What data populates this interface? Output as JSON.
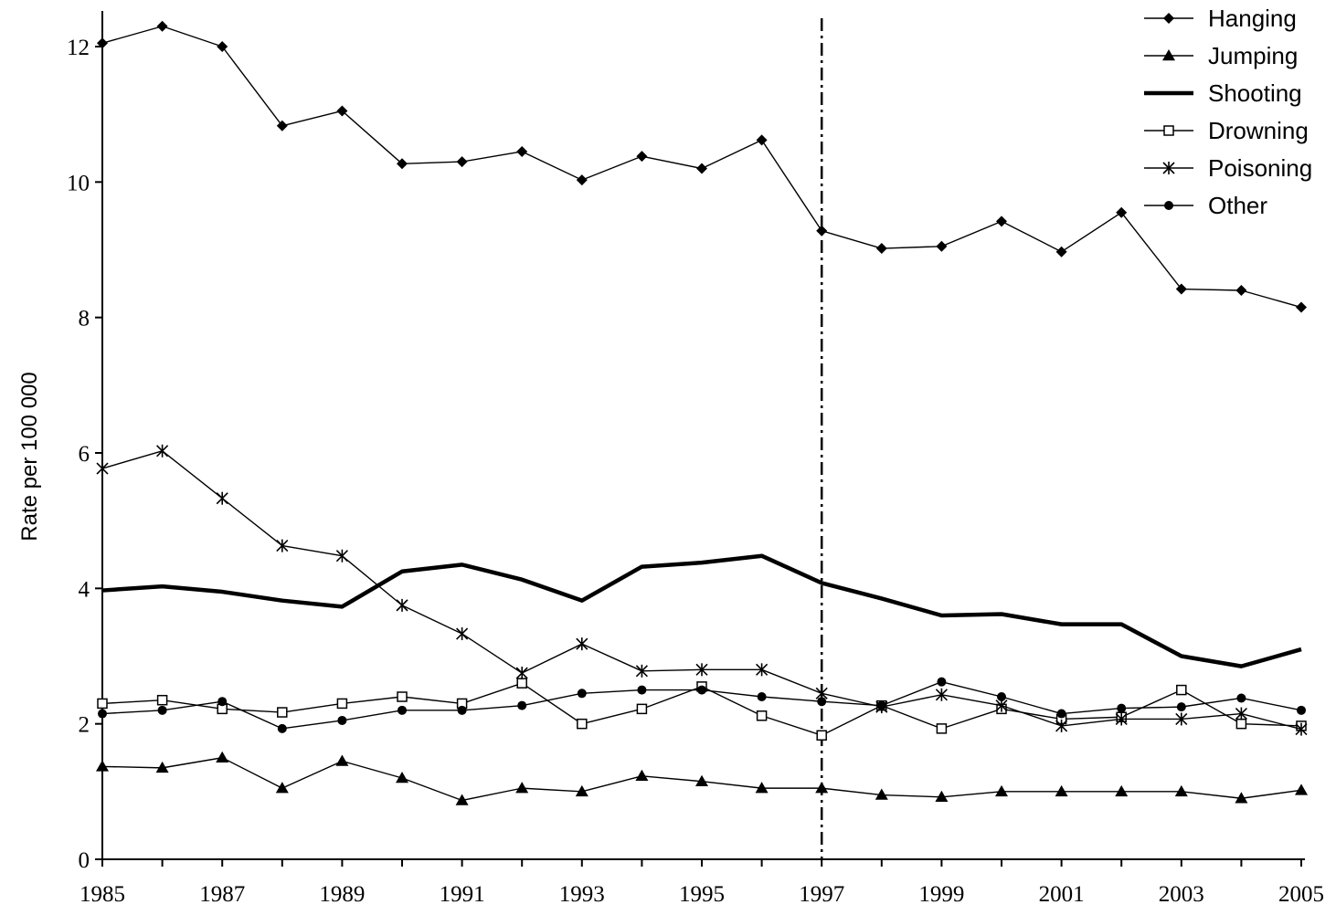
{
  "chart_data": {
    "type": "line",
    "title": "",
    "xlabel": "",
    "ylabel": "Rate per 100 000",
    "xlim": [
      1985,
      2005
    ],
    "ylim": [
      0,
      12.5
    ],
    "x": [
      1985,
      1986,
      1987,
      1988,
      1989,
      1990,
      1991,
      1992,
      1993,
      1994,
      1995,
      1996,
      1997,
      1998,
      1999,
      2000,
      2001,
      2002,
      2003,
      2004,
      2005
    ],
    "x_tick_labels": [
      "1985",
      "1987",
      "1989",
      "1991",
      "1993",
      "1995",
      "1997",
      "1999",
      "2001",
      "2003",
      "2005"
    ],
    "y_tick_labels": [
      "0",
      "2",
      "4",
      "6",
      "8",
      "10",
      "12"
    ],
    "reference_line": {
      "x": 1997,
      "style": "dash-dot"
    },
    "grid": false,
    "legend_position": "top-right",
    "series": [
      {
        "name": "Hanging",
        "marker": "diamond",
        "line": "thin",
        "values": [
          12.05,
          12.3,
          12.0,
          10.83,
          11.05,
          10.27,
          10.3,
          10.45,
          10.03,
          10.38,
          10.2,
          10.62,
          9.28,
          9.02,
          9.05,
          9.42,
          8.97,
          9.55,
          8.42,
          8.4,
          8.15
        ]
      },
      {
        "name": "Jumping",
        "marker": "triangle",
        "line": "thin",
        "values": [
          1.37,
          1.35,
          1.5,
          1.05,
          1.45,
          1.2,
          0.87,
          1.05,
          1.0,
          1.23,
          1.15,
          1.05,
          1.05,
          0.95,
          0.92,
          1.0,
          1.0,
          1.0,
          1.0,
          0.9,
          1.02
        ]
      },
      {
        "name": "Shooting",
        "marker": "none",
        "line": "thick",
        "values": [
          3.97,
          4.03,
          3.95,
          3.82,
          3.73,
          4.25,
          4.35,
          4.13,
          3.82,
          4.32,
          4.38,
          4.48,
          4.08,
          3.85,
          3.6,
          3.62,
          3.47,
          3.47,
          3.0,
          2.85,
          3.1
        ]
      },
      {
        "name": "Drowning",
        "marker": "square-open",
        "line": "thin",
        "values": [
          2.3,
          2.35,
          2.22,
          2.17,
          2.3,
          2.4,
          2.3,
          2.6,
          2.0,
          2.22,
          2.55,
          2.12,
          1.83,
          2.27,
          1.93,
          2.22,
          2.07,
          2.1,
          2.5,
          2.0,
          1.97
        ]
      },
      {
        "name": "Poisoning",
        "marker": "asterisk",
        "line": "thin",
        "values": [
          5.77,
          6.03,
          5.33,
          4.63,
          4.48,
          3.75,
          3.33,
          2.75,
          3.18,
          2.78,
          2.8,
          2.8,
          2.45,
          2.25,
          2.43,
          2.27,
          1.97,
          2.07,
          2.07,
          2.15,
          1.92
        ]
      },
      {
        "name": "Other",
        "marker": "circle",
        "line": "thin",
        "values": [
          2.15,
          2.2,
          2.33,
          1.93,
          2.05,
          2.2,
          2.2,
          2.27,
          2.45,
          2.5,
          2.5,
          2.4,
          2.33,
          2.27,
          2.62,
          2.4,
          2.15,
          2.23,
          2.25,
          2.38,
          2.2
        ]
      }
    ]
  }
}
